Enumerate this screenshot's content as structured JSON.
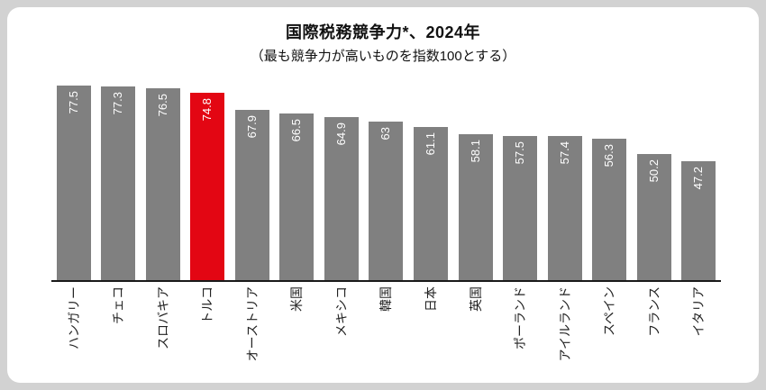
{
  "title": "国際税務競争力*、2024年",
  "subtitle": "（最も競争力が高いものを指数100とする）",
  "colors": {
    "bar_default": "#808080",
    "bar_highlight": "#e30613",
    "value_label": "#ffffff",
    "axis": "#1a1a1a",
    "card_background": "#ffffff",
    "page_background": "#d2d2d2",
    "category_label": "#222222"
  },
  "chart_data": {
    "type": "bar",
    "title": "国際税務競争力*、2024年",
    "subtitle": "（最も競争力が高いものを指数100とする）",
    "categories": [
      "ハンガリー",
      "チェコ",
      "スロバキア",
      "トルコ",
      "オーストリア",
      "米国",
      "メキシコ",
      "韓国",
      "日本",
      "英国",
      "ポーランド",
      "アイルランド",
      "スペイン",
      "フランス",
      "イタリア"
    ],
    "values": [
      77.5,
      77.3,
      76.5,
      74.8,
      67.9,
      66.5,
      64.9,
      63,
      61.1,
      58.1,
      57.5,
      57.4,
      56.3,
      50.2,
      47.2
    ],
    "value_labels": [
      "77.5",
      "77.3",
      "76.5",
      "74.8",
      "67.9",
      "66.5",
      "64.9",
      "63",
      "61.1",
      "58.1",
      "57.5",
      "57.4",
      "56.3",
      "50.2",
      "47.2"
    ],
    "highlight_index": 3,
    "highlight_category": "トルコ",
    "orientation": "vertical",
    "label_rotation": -90,
    "xlabel": "",
    "ylabel": "",
    "ylim": [
      0,
      77.5
    ],
    "grid": false,
    "legend": false,
    "axis_line": "bottom-only"
  }
}
